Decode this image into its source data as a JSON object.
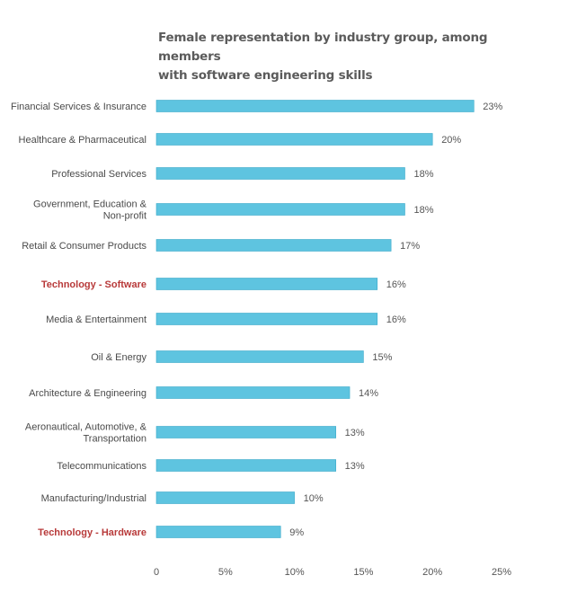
{
  "chart_data": {
    "type": "bar",
    "orientation": "horizontal",
    "title": "Female representation by industry group, among members with software engineering skills",
    "title_lines": [
      "Female representation by industry group, among members",
      "with software engineering skills"
    ],
    "categories": [
      [
        "Financial Services & Insurance"
      ],
      [
        "Healthcare & Pharmaceutical"
      ],
      [
        "Professional Services"
      ],
      [
        "Government, Education &",
        "Non-profit"
      ],
      [
        "Retail & Consumer Products"
      ],
      [
        "Technology - Software"
      ],
      [
        "Media & Entertainment"
      ],
      [
        "Oil & Energy"
      ],
      [
        "Architecture & Engineering"
      ],
      [
        "Aeronautical, Automotive, &",
        "Transportation"
      ],
      [
        "Telecommunications"
      ],
      [
        "Manufacturing/Industrial"
      ],
      [
        "Technology - Hardware"
      ]
    ],
    "values": [
      23,
      20,
      18,
      18,
      17,
      16,
      16,
      15,
      14,
      13,
      13,
      10,
      9
    ],
    "value_labels": [
      "23%",
      "20%",
      "18%",
      "18%",
      "17%",
      "16%",
      "16%",
      "15%",
      "14%",
      "13%",
      "13%",
      "10%",
      "9%"
    ],
    "highlighted": [
      false,
      false,
      false,
      false,
      false,
      true,
      false,
      false,
      false,
      false,
      false,
      false,
      true
    ],
    "xlim": [
      0,
      25
    ],
    "xticks": [
      0,
      5,
      10,
      15,
      20,
      25
    ],
    "xtick_labels": [
      "0",
      "5%",
      "10%",
      "15%",
      "20%",
      "25%"
    ],
    "grid": false,
    "legend": "none",
    "colors": {
      "bar": "#5ec4e0",
      "bar_edge": "#3aa9c9",
      "highlight_label": "#b83a3a",
      "text": "#4a4a4a"
    }
  }
}
